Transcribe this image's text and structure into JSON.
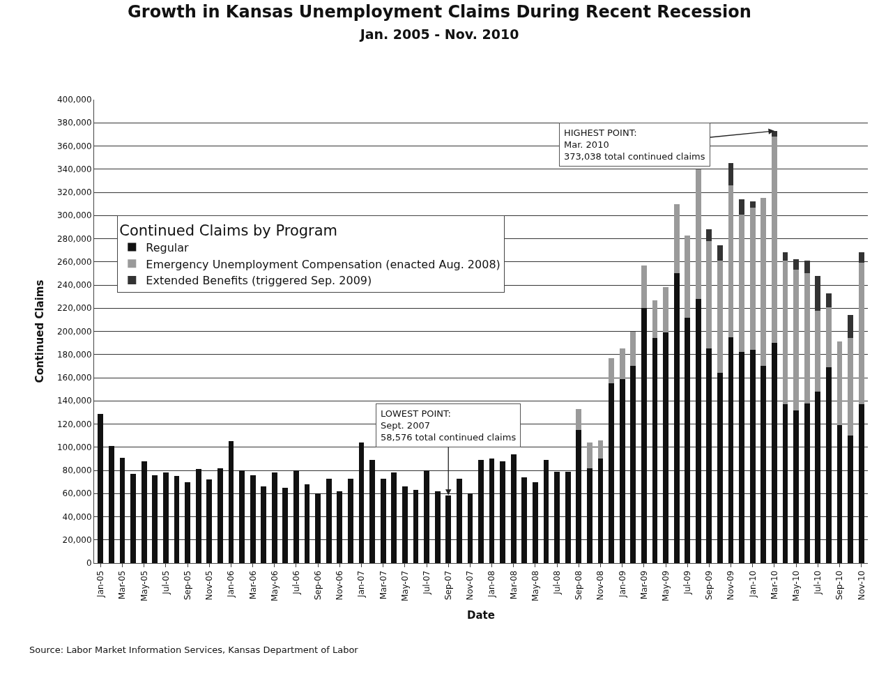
{
  "chart_data": {
    "type": "bar",
    "title": "Growth in Kansas Unemployment Claims During Recent Recession",
    "subtitle": "Jan. 2005 - Nov. 2010",
    "xlabel": "Date",
    "ylabel": "Continued Claims",
    "legend_title": "Continued Claims by Program",
    "categories": [
      "Jan-05",
      null,
      "Mar-05",
      null,
      "May-05",
      null,
      "Jul-05",
      null,
      "Sep-05",
      null,
      "Nov-05",
      null,
      "Jan-06",
      null,
      "Mar-06",
      null,
      "May-06",
      null,
      "Jul-06",
      null,
      "Sep-06",
      null,
      "Nov-06",
      null,
      "Jan-07",
      null,
      "Mar-07",
      null,
      "May-07",
      null,
      "Jul-07",
      null,
      "Sep-07",
      null,
      "Nov-07",
      null,
      "Jan-08",
      null,
      "Mar-08",
      null,
      "May-08",
      null,
      "Jul-08",
      null,
      "Sep-08",
      null,
      "Nov-08",
      null,
      "Jan-09",
      null,
      "Mar-09",
      null,
      "May-09",
      null,
      "Jul-09",
      null,
      "Sep-09",
      null,
      "Nov-09",
      null,
      "Jan-10",
      null,
      "Mar-10",
      null,
      "May-10",
      null,
      "Jul-10",
      null,
      "Sep-10",
      null,
      "Nov-10"
    ],
    "stacked": true,
    "series": [
      {
        "name": "Regular",
        "color": "#111111",
        "values": [
          129000,
          101000,
          91000,
          77000,
          88000,
          76000,
          78000,
          75000,
          70000,
          81000,
          72000,
          82000,
          105000,
          80000,
          76000,
          66000,
          78000,
          65000,
          80000,
          68000,
          60000,
          73000,
          62000,
          73000,
          104000,
          89000,
          73000,
          78000,
          66000,
          63000,
          80000,
          62000,
          58576,
          73000,
          60000,
          89000,
          90000,
          88000,
          94000,
          74000,
          70000,
          89000,
          79000,
          79000,
          115000,
          82000,
          90000,
          155000,
          159000,
          170000,
          220000,
          194000,
          199000,
          250000,
          212000,
          228000,
          185000,
          164000,
          195000,
          182000,
          184000,
          170000,
          190000,
          137000,
          132000,
          138000,
          148000,
          169000,
          119000,
          110000,
          137000
        ]
      },
      {
        "name": "Emergency Unemployment Compensation (enacted Aug. 2008)",
        "color": "#9a9a9a",
        "values": [
          null,
          null,
          null,
          null,
          null,
          null,
          null,
          null,
          null,
          null,
          null,
          null,
          null,
          null,
          null,
          null,
          null,
          null,
          null,
          null,
          null,
          null,
          null,
          null,
          null,
          null,
          null,
          null,
          null,
          null,
          null,
          null,
          null,
          null,
          null,
          null,
          null,
          null,
          null,
          null,
          null,
          null,
          null,
          null,
          18000,
          22000,
          16000,
          22000,
          26000,
          30000,
          37000,
          33000,
          39000,
          60000,
          71000,
          112000,
          93000,
          97000,
          131000,
          119000,
          123000,
          145000,
          178000,
          124000,
          121000,
          112000,
          70000,
          52000,
          72000,
          84000,
          122000
        ]
      },
      {
        "name": "Extended Benefits (triggered Sep. 2009)",
        "color": "#333333",
        "values": [
          null,
          null,
          null,
          null,
          null,
          null,
          null,
          null,
          null,
          null,
          null,
          null,
          null,
          null,
          null,
          null,
          null,
          null,
          null,
          null,
          null,
          null,
          null,
          null,
          null,
          null,
          null,
          null,
          null,
          null,
          null,
          null,
          null,
          null,
          null,
          null,
          null,
          null,
          null,
          null,
          null,
          null,
          null,
          null,
          null,
          null,
          null,
          null,
          null,
          null,
          null,
          null,
          null,
          null,
          null,
          null,
          10000,
          13000,
          19000,
          13000,
          5000,
          null,
          5000,
          7000,
          9000,
          11000,
          30000,
          12000,
          null,
          20000,
          9000
        ]
      }
    ],
    "ylim": [
      0,
      400000
    ],
    "yticks": [
      {
        "value": 0,
        "label": "0"
      },
      {
        "value": 20000,
        "label": "20,000"
      },
      {
        "value": 40000,
        "label": "40,000"
      },
      {
        "value": 60000,
        "label": "60,000"
      },
      {
        "value": 80000,
        "label": "80,000"
      },
      {
        "value": 100000,
        "label": "100,000"
      },
      {
        "value": 120000,
        "label": "120,000"
      },
      {
        "value": 140000,
        "label": "140,000"
      },
      {
        "value": 160000,
        "label": "160,000"
      },
      {
        "value": 180000,
        "label": "180,000"
      },
      {
        "value": 200000,
        "label": "200,000"
      },
      {
        "value": 220000,
        "label": "220,000"
      },
      {
        "value": 240000,
        "label": "240,000"
      },
      {
        "value": 260000,
        "label": "260,000"
      },
      {
        "value": 280000,
        "label": "280,000"
      },
      {
        "value": 300000,
        "label": "300,000"
      },
      {
        "value": 320000,
        "label": "320,000"
      },
      {
        "value": 340000,
        "label": "340,000"
      },
      {
        "value": 360000,
        "label": "360,000"
      },
      {
        "value": 380000,
        "label": "380,000"
      },
      {
        "value": 400000,
        "label": "400,000"
      }
    ],
    "grid": "y",
    "legend": "left",
    "annotations": [
      {
        "text": "HIGHEST POINT:\nMar. 2010\n373,038 total continued claims",
        "x": "Mar-10",
        "y": 373038
      },
      {
        "text": "LOWEST POINT:\nSept. 2007\n58,576 total continued claims",
        "x": "Sep-07",
        "y": 58576
      },
      "Source: Labor Market Information Services, Kansas Department of Labor"
    ]
  }
}
